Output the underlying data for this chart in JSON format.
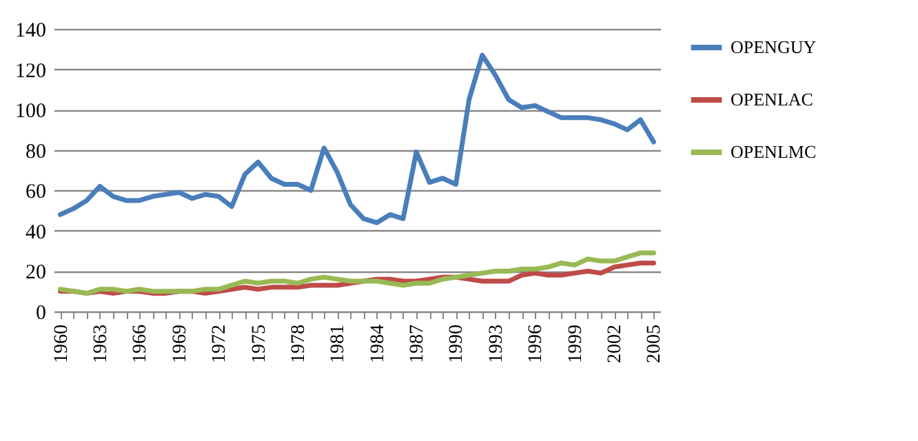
{
  "chart_data": {
    "type": "line",
    "categories": [
      "1960",
      null,
      null,
      "1963",
      null,
      null,
      "1966",
      null,
      null,
      "1969",
      null,
      null,
      "1972",
      null,
      null,
      "1975",
      null,
      null,
      "1978",
      null,
      null,
      "1981",
      null,
      null,
      "1984",
      null,
      null,
      "1987",
      null,
      null,
      "1990",
      null,
      null,
      "1993",
      null,
      null,
      "1996",
      null,
      null,
      "1999",
      null,
      null,
      "2002",
      null,
      null,
      "2005"
    ],
    "series": [
      {
        "name": "OPENGUY",
        "color": "#4a7ebb",
        "values": [
          48,
          51,
          55,
          62,
          57,
          55,
          55,
          57,
          58,
          59,
          56,
          58,
          57,
          52,
          68,
          74,
          66,
          63,
          63,
          60,
          81,
          69,
          53,
          46,
          44,
          48,
          46,
          79,
          64,
          66,
          63,
          105,
          127,
          117,
          105,
          101,
          102,
          99,
          96,
          96,
          96,
          95,
          93,
          90,
          95,
          84
        ]
      },
      {
        "name": "OPENLAC",
        "color": "#be4b48",
        "values": [
          10,
          10,
          9,
          10,
          9,
          10,
          10,
          9,
          9,
          10,
          10,
          9,
          10,
          11,
          12,
          11,
          12,
          12,
          12,
          13,
          13,
          13,
          14,
          15,
          16,
          16,
          15,
          15,
          16,
          17,
          17,
          16,
          15,
          15,
          15,
          18,
          19,
          18,
          18,
          19,
          20,
          19,
          22,
          23,
          24,
          24
        ]
      },
      {
        "name": "OPENLMC",
        "color": "#98b954",
        "values": [
          11,
          10,
          9,
          11,
          11,
          10,
          11,
          10,
          10,
          10,
          10,
          11,
          11,
          13,
          15,
          14,
          15,
          15,
          14,
          16,
          17,
          16,
          15,
          15,
          15,
          14,
          13,
          14,
          14,
          16,
          17,
          18,
          19,
          20,
          20,
          21,
          21,
          22,
          24,
          23,
          26,
          25,
          25,
          27,
          29,
          29
        ]
      }
    ],
    "ylim": [
      0,
      140
    ],
    "yticks": [
      0,
      20,
      40,
      60,
      80,
      100,
      120,
      140
    ],
    "grid": "y",
    "legend": "right",
    "marker": "none",
    "line_style": "solid"
  }
}
